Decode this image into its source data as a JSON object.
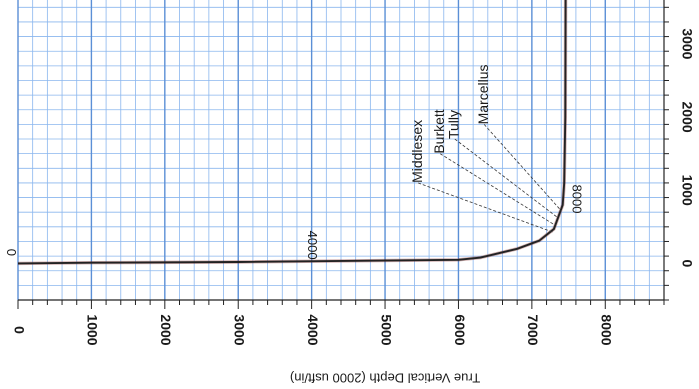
{
  "chart_data": {
    "type": "line",
    "orientation": "rotated-180",
    "title": "",
    "xlabel": "True Vertical Depth (2000 usft/in)",
    "ylabel": "",
    "xlim": [
      0,
      8800
    ],
    "ylim": [
      -500,
      3600
    ],
    "x_ticks": [
      "0",
      "1000",
      "2000",
      "3000",
      "4000",
      "5000",
      "6000",
      "7000",
      "8000"
    ],
    "y_ticks": [
      "0",
      "1000",
      "2000",
      "3000"
    ],
    "grid": true,
    "series": [
      {
        "color": "#222222",
        "points": [
          {
            "x": 0,
            "y": 0
          },
          {
            "x": 1000,
            "y": 10
          },
          {
            "x": 3000,
            "y": 20
          },
          {
            "x": 6000,
            "y": 50
          },
          {
            "x": 6300,
            "y": 80
          },
          {
            "x": 6800,
            "y": 200
          },
          {
            "x": 7100,
            "y": 310
          },
          {
            "x": 7300,
            "y": 470
          },
          {
            "x": 7420,
            "y": 800
          },
          {
            "x": 7440,
            "y": 1100
          },
          {
            "x": 7455,
            "y": 2000
          },
          {
            "x": 7460,
            "y": 3600
          }
        ]
      }
    ],
    "annotations": [
      {
        "text": "0",
        "x": -100,
        "y": 150
      },
      {
        "text": "4000",
        "x": 4000,
        "y": 250
      },
      {
        "text": "8000",
        "x": 7600,
        "y": 880
      }
    ],
    "formation_tops": [
      {
        "name": "Middlesex",
        "label_x": 5450,
        "label_y": 1100,
        "target_x": 7280,
        "target_y": 430
      },
      {
        "name": "Burkett",
        "label_x": 5750,
        "label_y": 1500,
        "target_x": 7320,
        "target_y": 520
      },
      {
        "name": "Tully",
        "label_x": 5950,
        "label_y": 1700,
        "target_x": 7360,
        "target_y": 620
      },
      {
        "name": "Marcellus",
        "label_x": 6350,
        "label_y": 1900,
        "target_x": 7400,
        "target_y": 720
      }
    ]
  }
}
